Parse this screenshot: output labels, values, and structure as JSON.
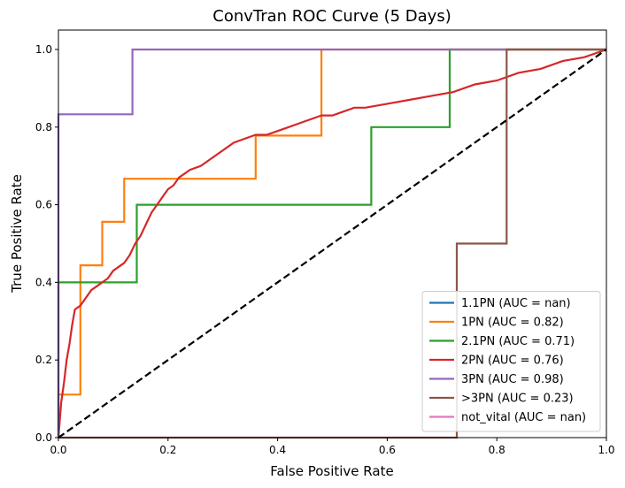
{
  "chart_data": {
    "type": "line",
    "title": "ConvTran ROC Curve (5 Days)",
    "xlabel": "False Positive Rate",
    "ylabel": "True Positive Rate",
    "xlim": [
      0.0,
      1.0
    ],
    "ylim": [
      0.0,
      1.05
    ],
    "xticks": [
      "0.0",
      "0.2",
      "0.4",
      "0.6",
      "0.8",
      "1.0"
    ],
    "yticks": [
      "0.0",
      "0.2",
      "0.4",
      "0.6",
      "0.8",
      "1.0"
    ],
    "legend_position": "lower right",
    "grid": false,
    "diagonal": {
      "x": [
        0,
        1
      ],
      "y": [
        0,
        1
      ],
      "style": "dashed",
      "color": "#000000"
    },
    "series": [
      {
        "name": "1.1PN (AUC = nan)",
        "color": "#1f77b4",
        "x": [
          0,
          0
        ],
        "y": [
          0,
          0
        ]
      },
      {
        "name": "1PN (AUC = 0.82)",
        "color": "#ff7f0e",
        "x": [
          0,
          0,
          0.04,
          0.04,
          0.08,
          0.08,
          0.12,
          0.12,
          0.36,
          0.36,
          0.48,
          0.48,
          1.0
        ],
        "y": [
          0,
          0.111,
          0.111,
          0.444,
          0.444,
          0.556,
          0.556,
          0.667,
          0.667,
          0.778,
          0.778,
          1.0,
          1.0
        ]
      },
      {
        "name": "2.1PN (AUC = 0.71)",
        "color": "#2ca02c",
        "x": [
          0,
          0,
          0.143,
          0.143,
          0.571,
          0.571,
          0.714,
          0.714,
          1.0
        ],
        "y": [
          0,
          0.4,
          0.4,
          0.6,
          0.6,
          0.8,
          0.8,
          1.0,
          1.0
        ]
      },
      {
        "name": "2PN (AUC = 0.76)",
        "color": "#d62728",
        "x": [
          0,
          0.005,
          0.01,
          0.015,
          0.02,
          0.025,
          0.03,
          0.04,
          0.05,
          0.06,
          0.07,
          0.08,
          0.09,
          0.1,
          0.11,
          0.12,
          0.13,
          0.14,
          0.15,
          0.16,
          0.17,
          0.18,
          0.19,
          0.2,
          0.21,
          0.22,
          0.24,
          0.26,
          0.28,
          0.3,
          0.32,
          0.34,
          0.36,
          0.38,
          0.4,
          0.42,
          0.44,
          0.46,
          0.48,
          0.5,
          0.52,
          0.54,
          0.56,
          0.6,
          0.64,
          0.68,
          0.72,
          0.76,
          0.8,
          0.84,
          0.88,
          0.92,
          0.96,
          1.0
        ],
        "y": [
          0,
          0.09,
          0.14,
          0.2,
          0.24,
          0.29,
          0.33,
          0.34,
          0.36,
          0.38,
          0.39,
          0.4,
          0.41,
          0.43,
          0.44,
          0.45,
          0.47,
          0.5,
          0.52,
          0.55,
          0.58,
          0.6,
          0.62,
          0.64,
          0.65,
          0.67,
          0.69,
          0.7,
          0.72,
          0.74,
          0.76,
          0.77,
          0.78,
          0.78,
          0.79,
          0.8,
          0.81,
          0.82,
          0.83,
          0.83,
          0.84,
          0.85,
          0.85,
          0.86,
          0.87,
          0.88,
          0.89,
          0.91,
          0.92,
          0.94,
          0.95,
          0.97,
          0.98,
          1.0
        ]
      },
      {
        "name": "3PN (AUC = 0.98)",
        "color": "#9467bd",
        "x": [
          0,
          0,
          0.135,
          0.135,
          1.0
        ],
        "y": [
          0,
          0.833,
          0.833,
          1.0,
          1.0
        ]
      },
      {
        "name": ">3PN (AUC = 0.23)",
        "color": "#8c564b",
        "x": [
          0,
          0.727,
          0.727,
          0.818,
          0.818,
          1.0
        ],
        "y": [
          0,
          0,
          0.5,
          0.5,
          1.0,
          1.0
        ]
      },
      {
        "name": "not_vital (AUC = nan)",
        "color": "#e377c2",
        "x": [
          0,
          0
        ],
        "y": [
          0,
          0
        ]
      }
    ]
  }
}
